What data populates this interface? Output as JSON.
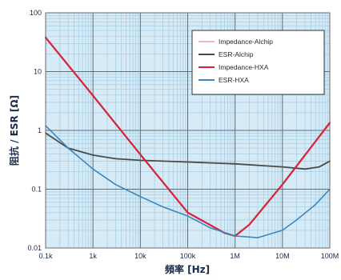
{
  "chart_data": {
    "type": "line",
    "xlabel": "頻率 [Hz]",
    "ylabel": "阻抗 / ESR [Ω]",
    "x_scale": "log",
    "y_scale": "log",
    "xlim": [
      100,
      100000000
    ],
    "ylim": [
      0.01,
      100
    ],
    "grid": true,
    "legend_position": "top-right",
    "x_ticks": [
      {
        "value": 100,
        "label": "0.1k"
      },
      {
        "value": 1000,
        "label": "1k"
      },
      {
        "value": 10000,
        "label": "10k"
      },
      {
        "value": 100000,
        "label": "100k"
      },
      {
        "value": 1000000,
        "label": "1M"
      },
      {
        "value": 10000000,
        "label": "10M"
      },
      {
        "value": 100000000,
        "label": "100M"
      }
    ],
    "y_ticks": [
      {
        "value": 0.01,
        "label": "0.01"
      },
      {
        "value": 0.1,
        "label": "0.1"
      },
      {
        "value": 1,
        "label": "1"
      },
      {
        "value": 10,
        "label": "10"
      },
      {
        "value": 100,
        "label": "100"
      }
    ],
    "series": [
      {
        "name": "Impedance-Alchip",
        "color": "#f2b8b8",
        "x": [
          100,
          1000,
          10000,
          100000,
          600000,
          1000000,
          2000000,
          10000000,
          100000000
        ],
        "y": [
          38,
          3.9,
          0.39,
          0.04,
          0.018,
          0.016,
          0.025,
          0.12,
          1.3
        ]
      },
      {
        "name": "ESR-Alchip",
        "color": "#4a4a4a",
        "x": [
          100,
          300,
          1000,
          3000,
          10000,
          100000,
          1000000,
          10000000,
          30000000,
          60000000,
          100000000
        ],
        "y": [
          0.9,
          0.5,
          0.38,
          0.33,
          0.31,
          0.29,
          0.27,
          0.24,
          0.22,
          0.24,
          0.3
        ]
      },
      {
        "name": "Impedance-HXA",
        "color": "#d4233a",
        "x": [
          100,
          1000,
          10000,
          100000,
          600000,
          1000000,
          2000000,
          10000000,
          100000000
        ],
        "y": [
          38,
          3.9,
          0.39,
          0.04,
          0.018,
          0.016,
          0.025,
          0.12,
          1.35
        ]
      },
      {
        "name": "ESR-HXA",
        "color": "#3a86bf",
        "x": [
          100,
          300,
          1000,
          3000,
          10000,
          30000,
          100000,
          300000,
          1000000,
          3000000,
          10000000,
          20000000,
          50000000,
          100000000
        ],
        "y": [
          1.2,
          0.5,
          0.22,
          0.12,
          0.075,
          0.05,
          0.035,
          0.022,
          0.016,
          0.015,
          0.02,
          0.03,
          0.055,
          0.1
        ]
      }
    ]
  }
}
